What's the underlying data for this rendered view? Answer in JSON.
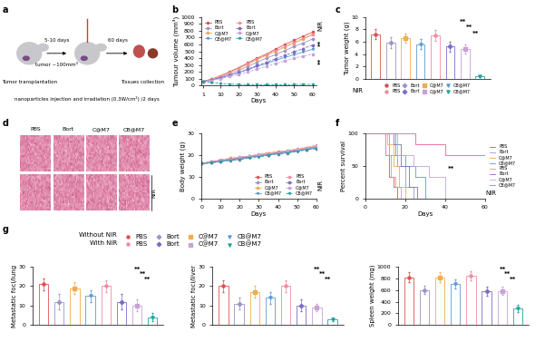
{
  "chart_data": [
    {
      "panel": "b",
      "type": "line",
      "x_label": "Days",
      "y_label": "Tumour volume (mm³)",
      "x": [
        1,
        5,
        10,
        15,
        20,
        25,
        30,
        35,
        40,
        45,
        50,
        55,
        60
      ],
      "xlim": [
        0,
        62
      ],
      "xticks": [
        1,
        10,
        20,
        30,
        40,
        50,
        60
      ],
      "ylim": [
        0,
        1000
      ],
      "yticks": [
        0,
        100,
        200,
        300,
        400,
        500,
        600,
        700,
        800,
        900,
        1000
      ],
      "legend": "upper left",
      "annotations": [
        "**",
        "**",
        "NIR"
      ],
      "series": [
        {
          "name": "PBS",
          "color": "#d9534f",
          "marker": "circle",
          "line_style": "solid",
          "values": [
            60,
            90,
            140,
            200,
            260,
            330,
            400,
            460,
            530,
            600,
            660,
            720,
            780
          ]
        },
        {
          "name": "Bort",
          "color": "#9e94c8",
          "marker": "diamond",
          "line_style": "solid",
          "values": [
            60,
            85,
            120,
            170,
            220,
            280,
            340,
            400,
            450,
            510,
            570,
            620,
            680
          ]
        },
        {
          "name": "C@M7",
          "color": "#f0ad4e",
          "marker": "square",
          "line_style": "solid",
          "values": [
            60,
            90,
            135,
            190,
            250,
            310,
            380,
            440,
            500,
            560,
            620,
            680,
            740
          ]
        },
        {
          "name": "CB@M7",
          "color": "#5b9bd5",
          "marker": "triangle",
          "line_style": "solid",
          "values": [
            60,
            80,
            110,
            150,
            190,
            230,
            280,
            320,
            370,
            410,
            450,
            490,
            530
          ]
        },
        {
          "name": "PBS",
          "color": "#f08ca0",
          "marker": "circle",
          "line_style": "dashed",
          "values": [
            60,
            90,
            135,
            190,
            250,
            320,
            390,
            450,
            510,
            570,
            630,
            690,
            750
          ]
        },
        {
          "name": "Bort",
          "color": "#7e6bc4",
          "marker": "diamond",
          "line_style": "dashed",
          "values": [
            60,
            80,
            110,
            150,
            190,
            240,
            290,
            340,
            390,
            440,
            490,
            540,
            590
          ]
        },
        {
          "name": "C@M7",
          "color": "#c8a2d8",
          "marker": "square",
          "line_style": "dashed",
          "values": [
            60,
            75,
            100,
            130,
            160,
            200,
            240,
            280,
            320,
            360,
            400,
            430,
            460
          ]
        },
        {
          "name": "CB@M7",
          "color": "#20a39e",
          "marker": "triangle",
          "line_style": "dashed",
          "values": [
            60,
            45,
            30,
            20,
            15,
            12,
            10,
            10,
            10,
            12,
            14,
            16,
            18
          ]
        }
      ]
    },
    {
      "panel": "c",
      "type": "bar",
      "y_label": "Tumor weight (g)",
      "ylim": [
        0,
        10
      ],
      "yticks": [
        0,
        2,
        4,
        6,
        8,
        10
      ],
      "tick_labels": "y",
      "legend": "bottom",
      "annotations": [
        "**",
        "**",
        "**",
        "NIR"
      ],
      "series": [
        {
          "name": "PBS",
          "color": "#d9534f",
          "marker": "circle",
          "values": [
            7.2
          ],
          "errors": [
            0.8
          ]
        },
        {
          "name": "Bort",
          "color": "#9e94c8",
          "marker": "diamond",
          "values": [
            5.8
          ],
          "errors": [
            0.9
          ]
        },
        {
          "name": "C@M7",
          "color": "#f0ad4e",
          "marker": "square",
          "values": [
            6.6
          ],
          "errors": [
            0.7
          ]
        },
        {
          "name": "CB@M7",
          "color": "#5b9bd5",
          "marker": "triangle",
          "values": [
            5.6
          ],
          "errors": [
            0.8
          ]
        },
        {
          "name": "PBS",
          "color": "#f08ca0",
          "marker": "circle",
          "values": [
            7.0
          ],
          "errors": [
            0.9
          ]
        },
        {
          "name": "Bort",
          "color": "#7e6bc4",
          "marker": "diamond",
          "values": [
            5.2
          ],
          "errors": [
            0.8
          ]
        },
        {
          "name": "C@M7",
          "color": "#c8a2d8",
          "marker": "square",
          "values": [
            4.8
          ],
          "errors": [
            0.7
          ]
        },
        {
          "name": "CB@M7",
          "color": "#20a39e",
          "marker": "triangle",
          "values": [
            0.4
          ],
          "errors": [
            0.2
          ]
        }
      ]
    },
    {
      "panel": "e",
      "type": "line",
      "x_label": "Days",
      "y_label": "Body weight (g)",
      "x": [
        0,
        5,
        10,
        15,
        20,
        25,
        30,
        35,
        40,
        45,
        50,
        55,
        60
      ],
      "xlim": [
        0,
        60
      ],
      "xticks": [
        0,
        10,
        20,
        30,
        40,
        50,
        60
      ],
      "ylim": [
        0,
        30
      ],
      "yticks": [
        0,
        10,
        20,
        30
      ],
      "legend": "lower right",
      "annotations": [
        "NIR"
      ],
      "series": [
        {
          "name": "PBS",
          "color": "#d9534f",
          "marker": "circle",
          "line_style": "solid",
          "values": [
            16,
            17,
            17.5,
            18,
            18.5,
            19.5,
            20,
            20.5,
            21,
            21.5,
            22.5,
            23,
            24
          ]
        },
        {
          "name": "Bort",
          "color": "#9e94c8",
          "marker": "diamond",
          "line_style": "solid",
          "values": [
            16,
            16.5,
            17,
            17.5,
            18,
            19,
            19.5,
            20,
            20.5,
            21,
            22,
            22.5,
            23.5
          ]
        },
        {
          "name": "C@M7",
          "color": "#f0ad4e",
          "marker": "square",
          "line_style": "solid",
          "values": [
            16,
            17,
            17.5,
            18.5,
            19,
            19.5,
            20,
            21,
            21.5,
            22,
            22.5,
            23.5,
            24
          ]
        },
        {
          "name": "CB@M7",
          "color": "#5b9bd5",
          "marker": "triangle",
          "line_style": "solid",
          "values": [
            16,
            16.5,
            17.5,
            18,
            18.5,
            19,
            20,
            20.5,
            21,
            21.5,
            22,
            23,
            23.5
          ]
        },
        {
          "name": "PBS",
          "color": "#f08ca0",
          "marker": "circle",
          "line_style": "dashed",
          "values": [
            16,
            17,
            18,
            18.5,
            19,
            19.5,
            20.5,
            21,
            21.5,
            22,
            23,
            23.5,
            24.5
          ]
        },
        {
          "name": "Bort",
          "color": "#7e6bc4",
          "marker": "diamond",
          "line_style": "dashed",
          "values": [
            16,
            16.5,
            17,
            18,
            18.5,
            19,
            19.5,
            20,
            21,
            21.5,
            22,
            22.5,
            23
          ]
        },
        {
          "name": "C@M7",
          "color": "#c8a2d8",
          "marker": "square",
          "line_style": "dashed",
          "values": [
            16,
            17,
            17.5,
            18,
            19,
            19.5,
            20,
            20.5,
            21,
            22,
            22.5,
            23,
            24
          ]
        },
        {
          "name": "CB@M7",
          "color": "#20a39e",
          "marker": "triangle",
          "line_style": "dashed",
          "values": [
            16,
            16.5,
            17,
            17.5,
            18,
            18.5,
            19,
            20,
            20.5,
            21,
            21.5,
            22.5,
            23
          ]
        }
      ]
    },
    {
      "panel": "f",
      "type": "step",
      "x_label": "Days",
      "y_label": "Percent survival",
      "xlim": [
        0,
        60
      ],
      "xticks": [
        0,
        20,
        40,
        60
      ],
      "ylim": [
        0,
        100
      ],
      "yticks": [
        0,
        50,
        100
      ],
      "legend": "right",
      "annotations": [
        "**",
        "NIR"
      ],
      "series": [
        {
          "name": "PBS",
          "color": "#d9534f",
          "marker": "none",
          "line_style": "solid",
          "x": [
            0,
            10,
            12,
            14,
            16
          ],
          "values": [
            100,
            67,
            33,
            17,
            0
          ]
        },
        {
          "name": "Bort",
          "color": "#9e94c8",
          "marker": "none",
          "line_style": "solid",
          "x": [
            0,
            12,
            16,
            20,
            24
          ],
          "values": [
            100,
            67,
            50,
            17,
            0
          ]
        },
        {
          "name": "C@M7",
          "color": "#f0ad4e",
          "marker": "none",
          "line_style": "solid",
          "x": [
            0,
            11,
            14,
            17,
            20
          ],
          "values": [
            100,
            83,
            50,
            17,
            0
          ]
        },
        {
          "name": "CB@M7",
          "color": "#5b9bd5",
          "marker": "none",
          "line_style": "solid",
          "x": [
            0,
            15,
            20,
            25,
            30
          ],
          "values": [
            100,
            67,
            50,
            33,
            0
          ]
        },
        {
          "name": "PBS",
          "color": "#f08ca0",
          "marker": "none",
          "line_style": "solid",
          "x": [
            0,
            10,
            13,
            15,
            18
          ],
          "values": [
            100,
            67,
            33,
            17,
            0
          ]
        },
        {
          "name": "Bort",
          "color": "#7e6bc4",
          "marker": "none",
          "line_style": "solid",
          "x": [
            0,
            14,
            18,
            22,
            26
          ],
          "values": [
            100,
            83,
            50,
            17,
            0
          ]
        },
        {
          "name": "C@M7",
          "color": "#c8a2d8",
          "marker": "none",
          "line_style": "solid",
          "x": [
            0,
            16,
            24,
            32,
            40
          ],
          "values": [
            100,
            67,
            50,
            33,
            0
          ]
        },
        {
          "name": "CB@M7",
          "color": "#e8609a",
          "marker": "none",
          "line_style": "solid",
          "x": [
            0,
            25,
            40,
            60
          ],
          "values": [
            100,
            83,
            67,
            67
          ]
        }
      ]
    },
    {
      "panel": "g",
      "type": "bar",
      "y_label": "Metastatic foci/lung",
      "ylim": [
        0,
        30
      ],
      "yticks": [
        0,
        10,
        20,
        30
      ],
      "tick_labels": "y",
      "legend": "top",
      "legend_groups": [
        "Without NIR",
        "With NIR"
      ],
      "annotations": [
        "**",
        "**",
        "**"
      ],
      "series": [
        {
          "name": "PBS",
          "color": "#d9534f",
          "marker": "circle",
          "values": [
            21
          ],
          "errors": [
            3
          ]
        },
        {
          "name": "Bort",
          "color": "#9e94c8",
          "marker": "diamond",
          "values": [
            12
          ],
          "errors": [
            4
          ]
        },
        {
          "name": "C@M7",
          "color": "#f0ad4e",
          "marker": "square",
          "values": [
            19
          ],
          "errors": [
            3
          ]
        },
        {
          "name": "CB@M7",
          "color": "#5b9bd5",
          "marker": "triangle",
          "values": [
            15
          ],
          "errors": [
            3
          ]
        },
        {
          "name": "PBS",
          "color": "#f08ca0",
          "marker": "circle",
          "values": [
            20
          ],
          "errors": [
            3
          ]
        },
        {
          "name": "Bort",
          "color": "#7e6bc4",
          "marker": "diamond",
          "values": [
            12
          ],
          "errors": [
            4
          ]
        },
        {
          "name": "C@M7",
          "color": "#c8a2d8",
          "marker": "square",
          "values": [
            10
          ],
          "errors": [
            3
          ]
        },
        {
          "name": "CB@M7",
          "color": "#20a39e",
          "marker": "triangle",
          "values": [
            4
          ],
          "errors": [
            2
          ]
        }
      ]
    },
    {
      "type": "bar",
      "y_label": "Metastatic foci/liver",
      "ylim": [
        0,
        30
      ],
      "yticks": [
        0,
        10,
        20,
        30
      ],
      "tick_labels": "y",
      "annotations": [
        "**",
        "**",
        "**"
      ],
      "series": [
        {
          "name": "PBS",
          "color": "#d9534f",
          "marker": "circle",
          "values": [
            20
          ],
          "errors": [
            3
          ]
        },
        {
          "name": "Bort",
          "color": "#9e94c8",
          "marker": "diamond",
          "values": [
            11
          ],
          "errors": [
            3
          ]
        },
        {
          "name": "C@M7",
          "color": "#f0ad4e",
          "marker": "square",
          "values": [
            17
          ],
          "errors": [
            3
          ]
        },
        {
          "name": "CB@M7",
          "color": "#5b9bd5",
          "marker": "triangle",
          "values": [
            14
          ],
          "errors": [
            3
          ]
        },
        {
          "name": "PBS",
          "color": "#f08ca0",
          "marker": "circle",
          "values": [
            20
          ],
          "errors": [
            3
          ]
        },
        {
          "name": "Bort",
          "color": "#7e6bc4",
          "marker": "diamond",
          "values": [
            10
          ],
          "errors": [
            3
          ]
        },
        {
          "name": "C@M7",
          "color": "#c8a2d8",
          "marker": "square",
          "values": [
            9
          ],
          "errors": [
            2
          ]
        },
        {
          "name": "CB@M7",
          "color": "#20a39e",
          "marker": "triangle",
          "values": [
            3
          ],
          "errors": [
            1
          ]
        }
      ]
    },
    {
      "type": "bar",
      "y_label": "Spleen weight (mg)",
      "ylim": [
        0,
        1000
      ],
      "yticks": [
        0,
        200,
        400,
        600,
        800,
        1000
      ],
      "tick_labels": "y",
      "annotations": [
        "**",
        "**",
        "**"
      ],
      "series": [
        {
          "name": "PBS",
          "color": "#d9534f",
          "marker": "circle",
          "values": [
            820
          ],
          "errors": [
            80
          ]
        },
        {
          "name": "Bort",
          "color": "#9e94c8",
          "marker": "diamond",
          "values": [
            600
          ],
          "errors": [
            70
          ]
        },
        {
          "name": "C@M7",
          "color": "#f0ad4e",
          "marker": "square",
          "values": [
            820
          ],
          "errors": [
            80
          ]
        },
        {
          "name": "CB@M7",
          "color": "#5b9bd5",
          "marker": "triangle",
          "values": [
            700
          ],
          "errors": [
            80
          ]
        },
        {
          "name": "PBS",
          "color": "#f08ca0",
          "marker": "circle",
          "values": [
            850
          ],
          "errors": [
            80
          ]
        },
        {
          "name": "Bort",
          "color": "#7e6bc4",
          "marker": "diamond",
          "values": [
            580
          ],
          "errors": [
            80
          ]
        },
        {
          "name": "C@M7",
          "color": "#c8a2d8",
          "marker": "square",
          "values": [
            580
          ],
          "errors": [
            70
          ]
        },
        {
          "name": "CB@M7",
          "color": "#20a39e",
          "marker": "triangle",
          "values": [
            280
          ],
          "errors": [
            60
          ]
        }
      ]
    }
  ],
  "schematic": {
    "panel": "a",
    "step1": "Tumor transplantation",
    "interval1": "5-10 days",
    "tumor": "tumor ~100mm³",
    "treatment": "nanoparticles injection and irradiation (0.3W/cm²) /2 days",
    "interval2": "60 days",
    "step3": "Tissues collection"
  },
  "histology": {
    "panel": "d",
    "columns": [
      "PBS",
      "Bort",
      "C@M7",
      "CB@M7"
    ],
    "row_label": "NIR"
  }
}
